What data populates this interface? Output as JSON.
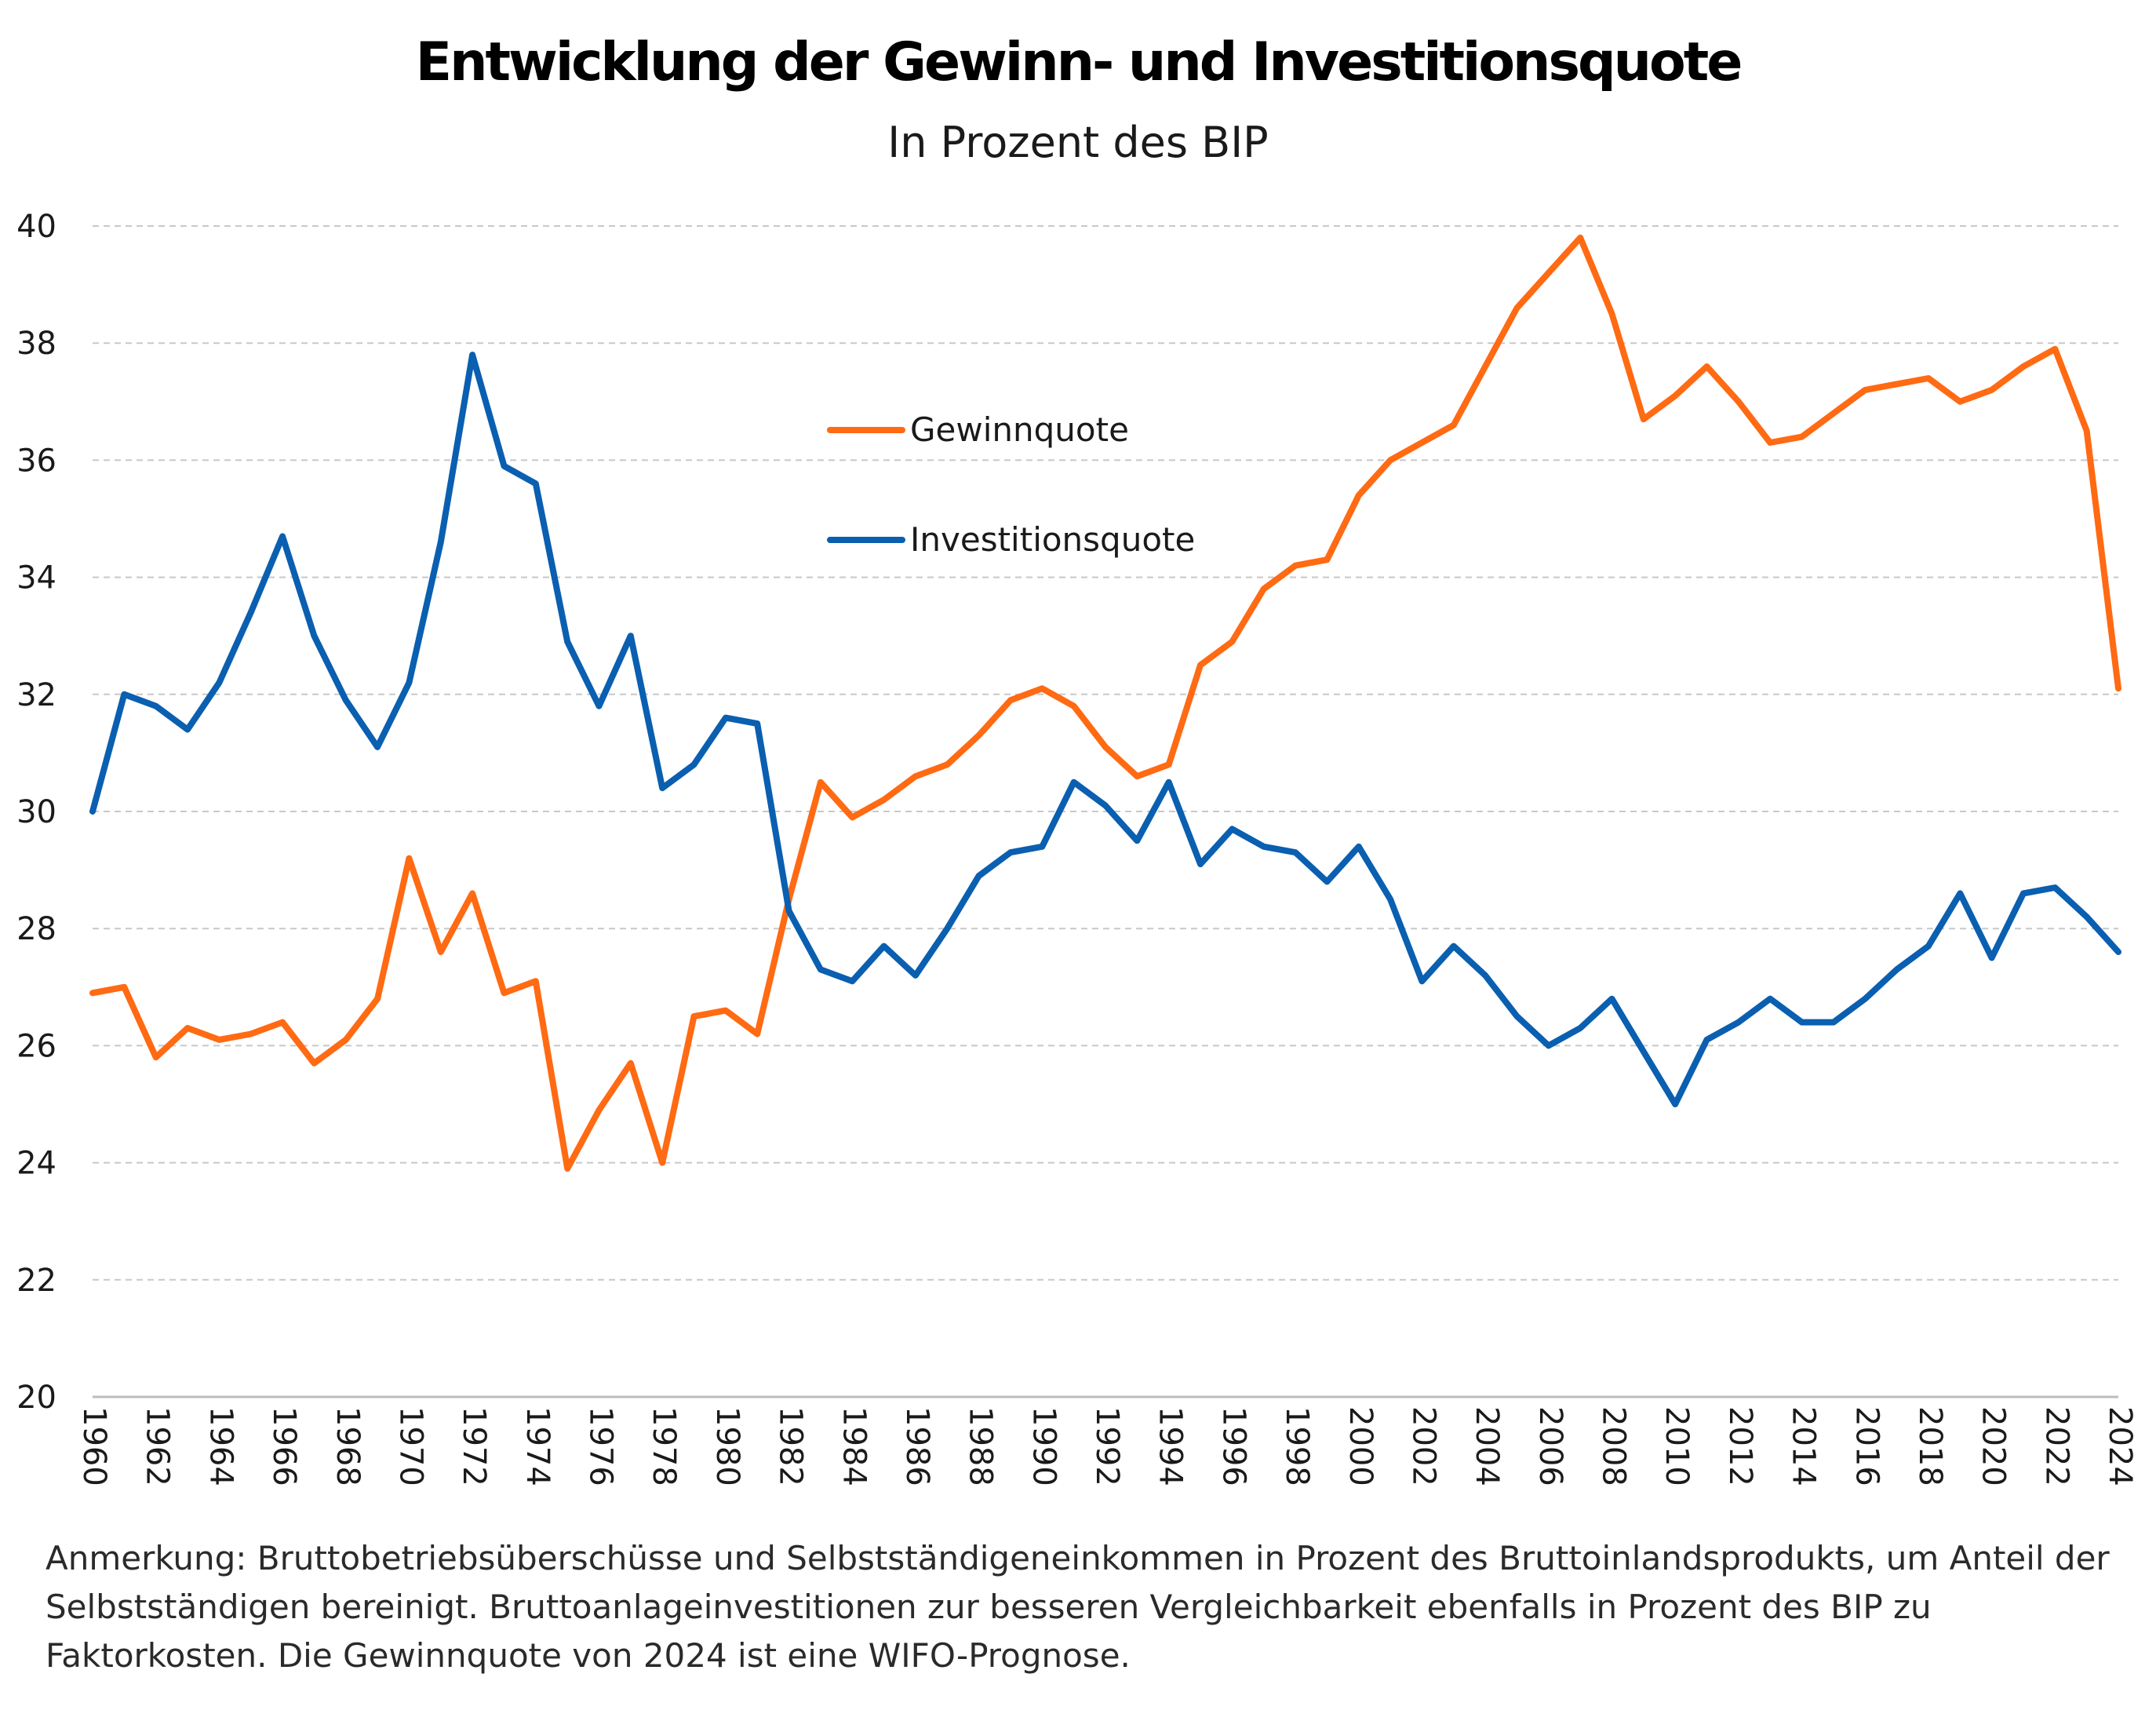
{
  "title": "Entwicklung der Gewinn- und Investitionsquote",
  "subtitle": "In Prozent des BIP",
  "note": "Anmerkung: Bruttobetriebsüberschüsse und Selbstständigeneinkommen in Prozent des Bruttoinlandsprodukts, um Anteil der Selbstständigen bereinigt. Bruttoanlageinvestitionen zur besseren Vergleichbarkeit ebenfalls in Prozent des BIP zu Faktorkosten. Die Gewinnquote von 2024 ist eine WIFO-Prognose.",
  "chart_data": {
    "type": "line",
    "x": [
      1960,
      1961,
      1962,
      1963,
      1964,
      1965,
      1966,
      1967,
      1968,
      1969,
      1970,
      1971,
      1972,
      1973,
      1974,
      1975,
      1976,
      1977,
      1978,
      1979,
      1980,
      1981,
      1982,
      1983,
      1984,
      1985,
      1986,
      1987,
      1988,
      1989,
      1990,
      1991,
      1992,
      1993,
      1994,
      1995,
      1996,
      1997,
      1998,
      1999,
      2000,
      2001,
      2002,
      2003,
      2004,
      2005,
      2006,
      2007,
      2008,
      2009,
      2010,
      2011,
      2012,
      2013,
      2014,
      2015,
      2016,
      2017,
      2018,
      2019,
      2020,
      2021,
      2022,
      2023,
      2024
    ],
    "x_tick_labels": [
      "1960",
      "1962",
      "1964",
      "1966",
      "1968",
      "1970",
      "1972",
      "1974",
      "1976",
      "1978",
      "1980",
      "1982",
      "1984",
      "1986",
      "1988",
      "1990",
      "1992",
      "1994",
      "1996",
      "1998",
      "2000",
      "2002",
      "2004",
      "2006",
      "2008",
      "2010",
      "2012",
      "2014",
      "2016",
      "2018",
      "2020",
      "2022",
      "2024"
    ],
    "y_ticks": [
      "20",
      "22",
      "24",
      "26",
      "28",
      "30",
      "32",
      "34",
      "36",
      "38",
      "40"
    ],
    "ylim": [
      20,
      40
    ],
    "grid": true,
    "legend_position": "top-center",
    "series": [
      {
        "name": "Gewinnquote",
        "color": "#ff6a13",
        "values": [
          26.9,
          27.0,
          25.8,
          26.3,
          26.1,
          26.2,
          26.4,
          25.7,
          26.1,
          26.8,
          29.2,
          27.6,
          28.6,
          26.9,
          27.1,
          23.9,
          24.9,
          25.7,
          24.0,
          26.5,
          26.6,
          26.2,
          28.5,
          30.5,
          29.9,
          30.2,
          30.6,
          30.8,
          31.3,
          31.9,
          32.1,
          31.8,
          31.1,
          30.6,
          30.8,
          32.5,
          32.9,
          33.8,
          34.2,
          34.3,
          35.4,
          36.0,
          36.3,
          36.6,
          37.6,
          38.6,
          39.2,
          39.8,
          38.5,
          36.7,
          37.1,
          37.6,
          37.0,
          36.3,
          36.4,
          36.8,
          37.2,
          37.3,
          37.4,
          37.0,
          37.2,
          37.6,
          37.9,
          36.5,
          32.1
        ]
      },
      {
        "name": "Investitionsquote",
        "color": "#0a5fb0",
        "values": [
          30.0,
          32.0,
          31.8,
          31.4,
          32.2,
          33.4,
          34.7,
          33.0,
          31.9,
          31.1,
          32.2,
          34.6,
          37.8,
          35.9,
          35.6,
          32.9,
          31.8,
          33.0,
          30.4,
          30.8,
          31.6,
          31.5,
          28.3,
          27.3,
          27.1,
          27.7,
          27.2,
          28.0,
          28.9,
          29.3,
          29.4,
          30.5,
          30.1,
          29.5,
          30.5,
          29.1,
          29.7,
          29.4,
          29.3,
          28.8,
          29.4,
          28.5,
          27.1,
          27.7,
          27.2,
          26.5,
          26.0,
          26.3,
          26.8,
          25.9,
          25.0,
          26.1,
          26.4,
          26.8,
          26.4,
          26.4,
          26.8,
          27.3,
          27.7,
          28.6,
          27.5,
          28.6,
          28.7,
          28.2,
          27.6
        ]
      }
    ]
  }
}
